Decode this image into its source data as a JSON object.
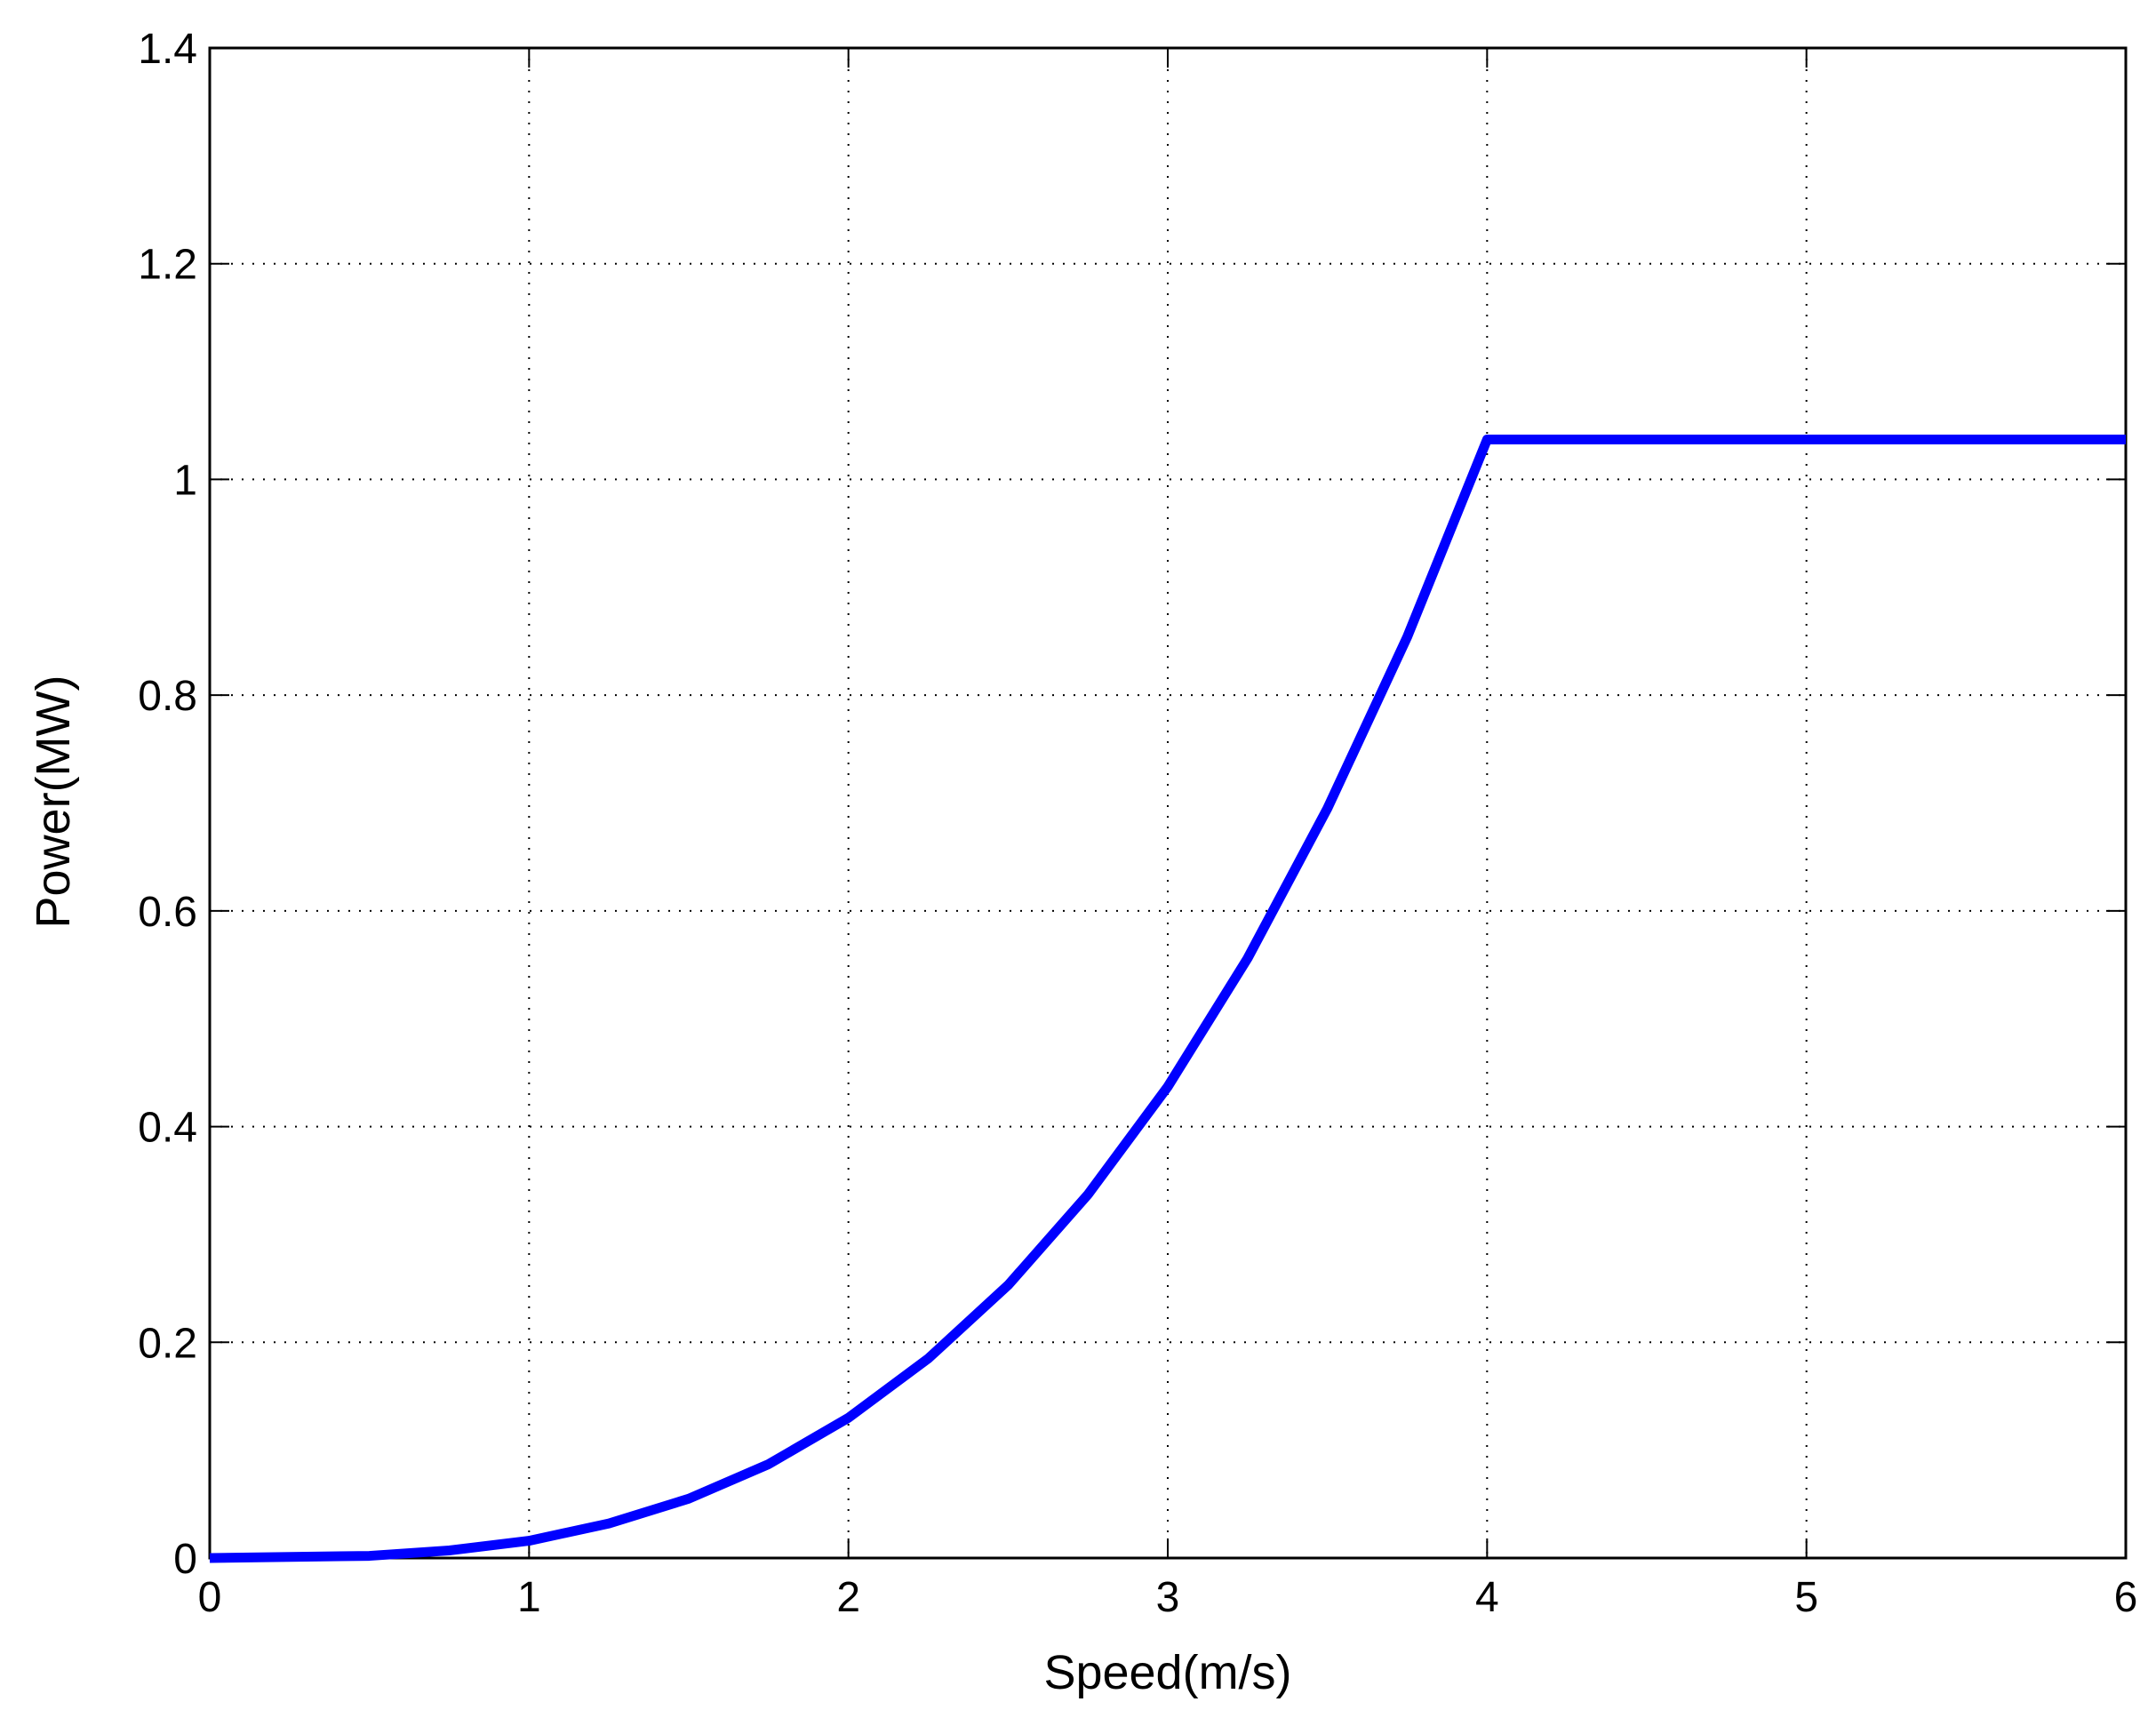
{
  "chart_data": {
    "type": "line",
    "x_label": "Speed(m/s)",
    "y_label": "Power(MW)",
    "x": [
      0,
      0.5,
      0.75,
      1,
      1.25,
      1.5,
      1.75,
      2,
      2.25,
      2.5,
      2.75,
      3,
      3.25,
      3.5,
      3.75,
      4,
      6
    ],
    "series": [
      {
        "color": "#0000ff",
        "values": [
          0,
          0.002,
          0.007,
          0.016,
          0.032,
          0.055,
          0.087,
          0.13,
          0.185,
          0.253,
          0.337,
          0.437,
          0.556,
          0.695,
          0.854,
          1.037,
          1.037
        ]
      }
    ],
    "xlim": [
      0,
      6
    ],
    "ylim": [
      0,
      1.4
    ],
    "xticks": [
      0,
      1,
      2,
      3,
      4,
      5,
      6
    ],
    "yticks": [
      0,
      0.2,
      0.4,
      0.6,
      0.8,
      1,
      1.2,
      1.4
    ],
    "grid": true
  }
}
